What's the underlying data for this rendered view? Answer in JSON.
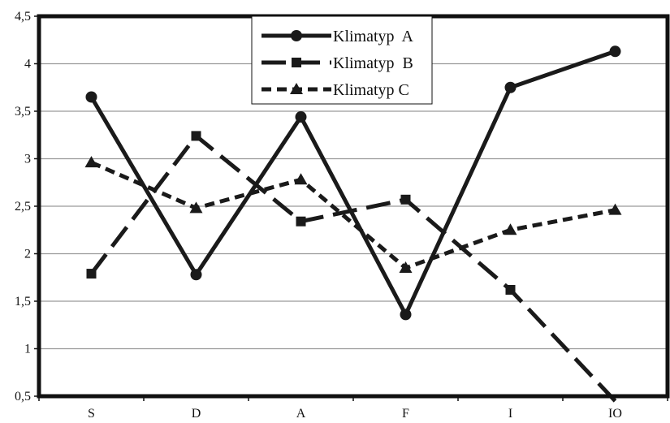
{
  "chart_data": {
    "type": "line",
    "categories": [
      "S",
      "D",
      "A",
      "F",
      "I",
      "IO"
    ],
    "y_ticks": [
      "0,5",
      "1",
      "1,5",
      "2",
      "2,5",
      "3",
      "3,5",
      "4",
      "4,5"
    ],
    "ylim": [
      0.5,
      4.5
    ],
    "grid": true,
    "legend_position": "top-center",
    "series": [
      {
        "name": "Klimatyp  A",
        "values": [
          3.65,
          1.78,
          3.44,
          1.36,
          3.75,
          4.13
        ],
        "marker": "circle",
        "dash": "solid",
        "color": "#1a1a1a"
      },
      {
        "name": "Klimatyp  B",
        "values": [
          1.79,
          3.24,
          2.34,
          2.57,
          1.62,
          0.45
        ],
        "marker": "square",
        "dash": "long-dash",
        "color": "#1a1a1a"
      },
      {
        "name": "Klimatyp C",
        "values": [
          2.96,
          2.48,
          2.78,
          1.85,
          2.25,
          2.46
        ],
        "marker": "triangle",
        "dash": "short-dash",
        "color": "#1a1a1a"
      }
    ]
  }
}
